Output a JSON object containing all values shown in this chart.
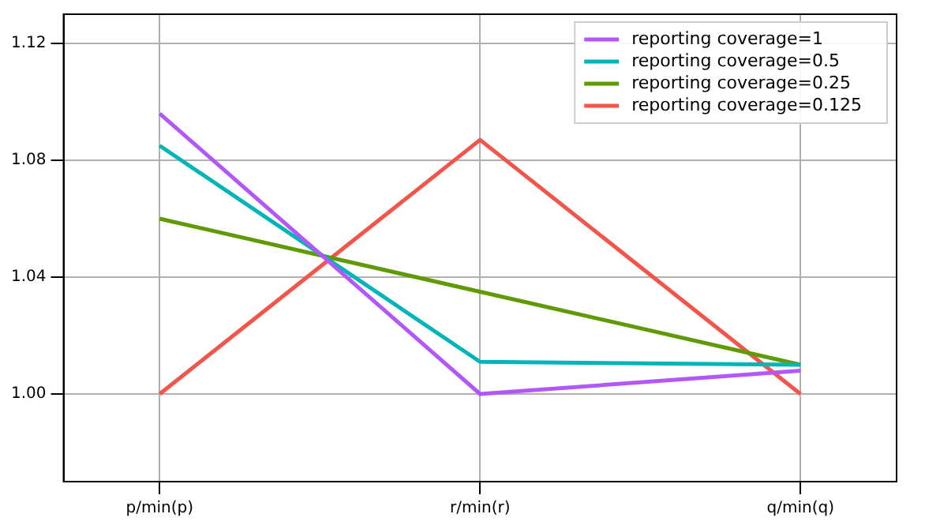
{
  "chart_data": {
    "type": "line",
    "categories": [
      "p/min(p)",
      "r/min(r)",
      "q/min(q)"
    ],
    "series": [
      {
        "name": "reporting coverage=1",
        "color": "#b157fb",
        "values": [
          1.096,
          1.0,
          1.008
        ]
      },
      {
        "name": "reporting coverage=0.5",
        "color": "#00b5b8",
        "values": [
          1.085,
          1.011,
          1.01
        ]
      },
      {
        "name": "reporting coverage=0.25",
        "color": "#5e9a00",
        "values": [
          1.06,
          1.035,
          1.01
        ]
      },
      {
        "name": "reporting coverage=0.125",
        "color": "#f4554b",
        "values": [
          1.0,
          1.087,
          1.0
        ]
      }
    ],
    "ylim": [
      0.97,
      1.13
    ],
    "yticks": [
      {
        "value": 1.0,
        "label": "1.00"
      },
      {
        "value": 1.04,
        "label": "1.04"
      },
      {
        "value": 1.08,
        "label": "1.08"
      },
      {
        "value": 1.12,
        "label": "1.12"
      }
    ],
    "grid": true,
    "legend": "top right",
    "marker": "none",
    "line_style": "solid"
  }
}
